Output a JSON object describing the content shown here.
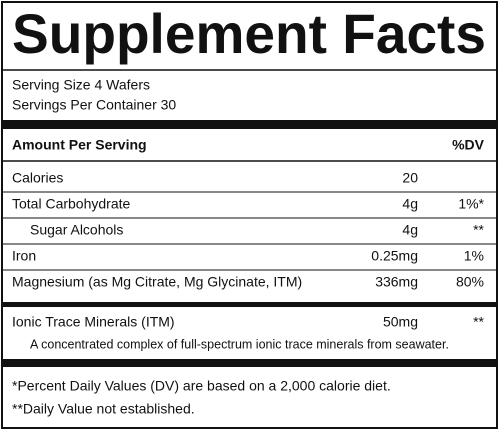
{
  "title": "Supplement Facts",
  "serving_size": "Serving Size 4 Wafers",
  "servings_per_container": "Servings Per Container 30",
  "header": {
    "amount": "Amount Per Serving",
    "dv": "%DV"
  },
  "rows": [
    {
      "name": "Calories",
      "amount": "20"
    },
    {
      "name": "Total Carbohydrate",
      "amount": "4g",
      "dv": "1%*"
    },
    {
      "name": "Sugar Alcohols",
      "amount": "4g",
      "dv": "**",
      "indent": true
    },
    {
      "name": "Iron",
      "amount": "0.25mg",
      "dv": "1%"
    },
    {
      "name": "Magnesium (as Mg Citrate, Mg Glycinate, ITM)",
      "amount": "336mg",
      "dv": "80%"
    }
  ],
  "blend": {
    "name": "Ionic Trace Minerals (ITM)",
    "amount": "50mg",
    "dv": "**",
    "description": "A concentrated complex of full-spectrum ionic trace minerals from seawater."
  },
  "footnotes": [
    "*Percent Daily Values (DV) are based on a 2,000 calorie diet.",
    "**Daily Value not established."
  ]
}
